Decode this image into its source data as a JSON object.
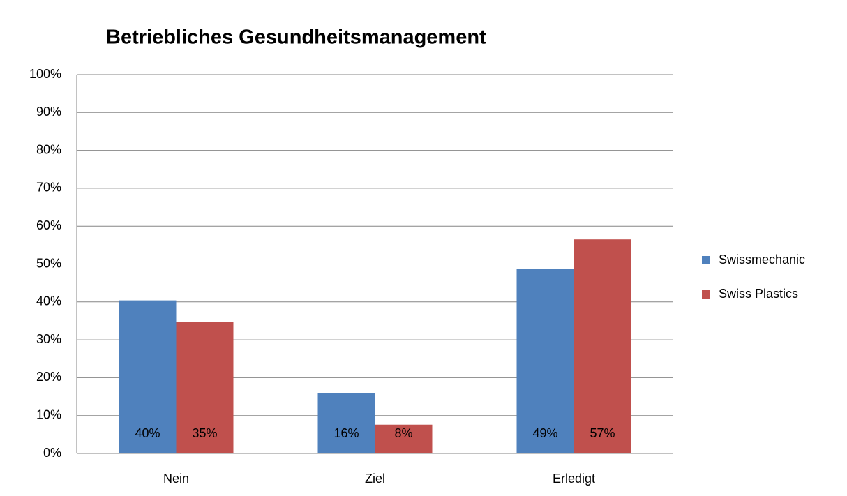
{
  "chart_data": {
    "type": "bar",
    "title": "Betriebliches Gesundheitsmanagement",
    "categories": [
      "Nein",
      "Ziel",
      "Erledigt"
    ],
    "series": [
      {
        "name": "Swissmechanic",
        "color": "#4f81bd",
        "values": [
          40.4,
          16,
          48.8
        ],
        "value_labels": [
          "40%",
          "16%",
          "49%"
        ]
      },
      {
        "name": "Swiss Plastics",
        "color": "#c0504d",
        "values": [
          34.8,
          7.6,
          56.5
        ],
        "value_labels": [
          "35%",
          "8%",
          "57%"
        ]
      }
    ],
    "ylim": [
      0,
      100
    ],
    "yticks": [
      {
        "value": 0,
        "label": "0%"
      },
      {
        "value": 10,
        "label": "10%"
      },
      {
        "value": 20,
        "label": "20%"
      },
      {
        "value": 30,
        "label": "30%"
      },
      {
        "value": 40,
        "label": "40%"
      },
      {
        "value": 50,
        "label": "50%"
      },
      {
        "value": 60,
        "label": "60%"
      },
      {
        "value": 70,
        "label": "70%"
      },
      {
        "value": 80,
        "label": "80%"
      },
      {
        "value": 90,
        "label": "90%"
      },
      {
        "value": 100,
        "label": "100%"
      }
    ],
    "grid": true,
    "legend": "right"
  }
}
